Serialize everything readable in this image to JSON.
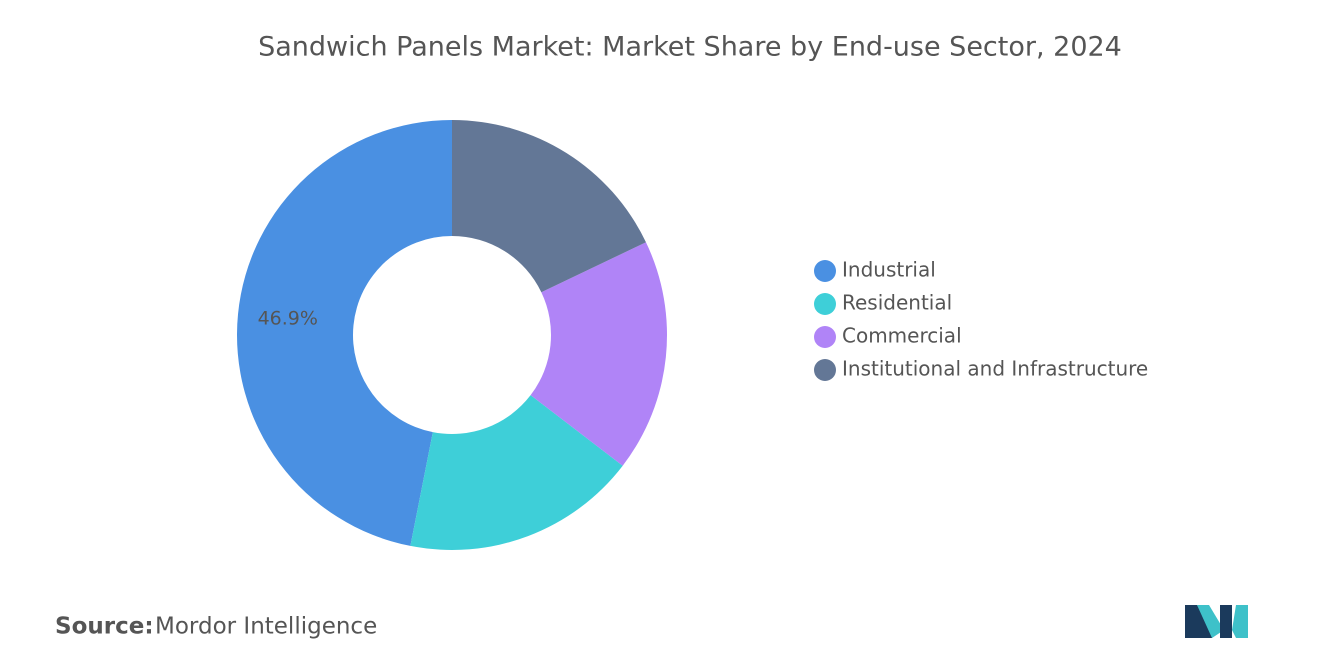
{
  "chart_data": {
    "type": "donut",
    "title": "Sandwich Panels Market: Market Share by End-use Sector, 2024",
    "categories": [
      "Industrial",
      "Residential",
      "Commercial",
      "Institutional and Infrastructure"
    ],
    "values": [
      46.9,
      17.7,
      17.5,
      17.9
    ],
    "value_labels": [
      "46.9%",
      null,
      null,
      null
    ],
    "colors": [
      "#4a90e2",
      "#3ecfd8",
      "#b084f7",
      "#637796"
    ],
    "legend": "right"
  },
  "footer": {
    "source_label": "Source:",
    "source": "Mordor Intelligence"
  }
}
